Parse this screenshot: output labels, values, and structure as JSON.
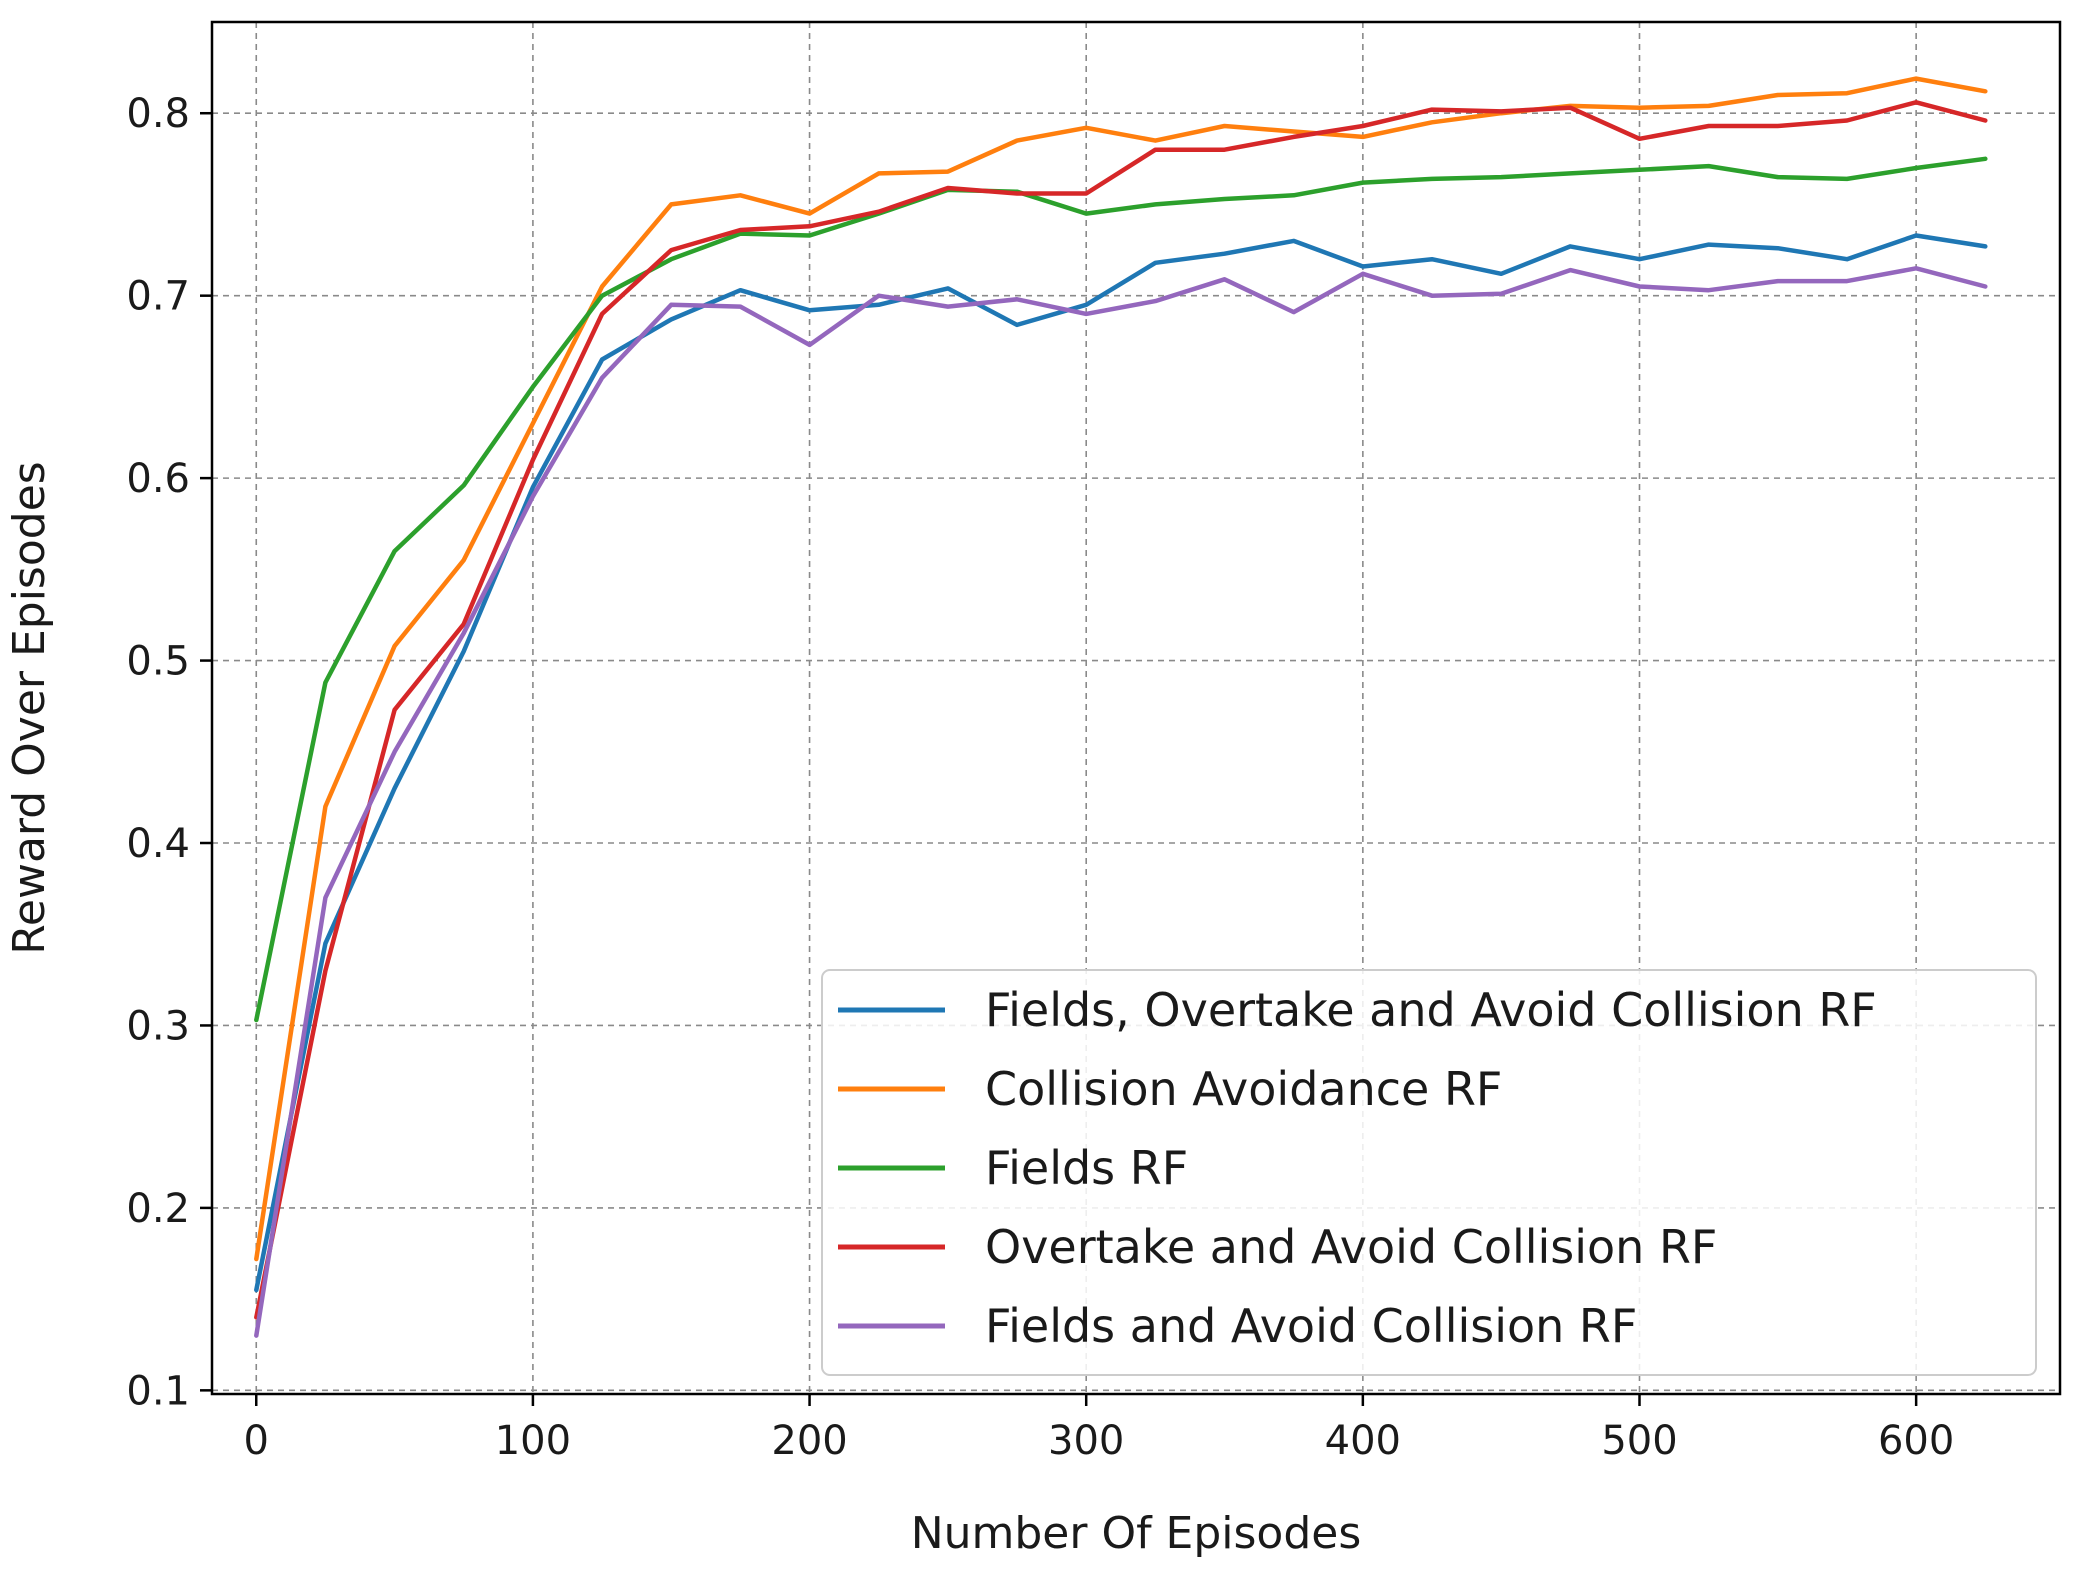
{
  "chart_data": {
    "type": "line",
    "title": "",
    "xlabel": "Number Of Episodes",
    "ylabel": "Reward Over Episodes",
    "xlim": [
      -16,
      652
    ],
    "ylim": [
      0.098,
      0.85
    ],
    "xticks": [
      0,
      100,
      200,
      300,
      400,
      500,
      600
    ],
    "xtick_labels": [
      "0",
      "100",
      "200",
      "300",
      "400",
      "500",
      "600"
    ],
    "yticks": [
      0.1,
      0.2,
      0.3,
      0.4,
      0.5,
      0.6,
      0.7,
      0.8
    ],
    "ytick_labels": [
      "0.1",
      "0.2",
      "0.3",
      "0.4",
      "0.5",
      "0.6",
      "0.7",
      "0.8"
    ],
    "grid": true,
    "legend_position": "lower-right",
    "x": [
      0,
      25,
      50,
      75,
      100,
      125,
      150,
      175,
      200,
      225,
      250,
      275,
      300,
      325,
      350,
      375,
      400,
      425,
      450,
      475,
      500,
      525,
      550,
      575,
      600,
      625
    ],
    "series": [
      {
        "name": "Fields, Overtake and Avoid Collision RF",
        "color": "#1f77b4",
        "values": [
          0.155,
          0.345,
          0.43,
          0.505,
          0.595,
          0.665,
          0.687,
          0.703,
          0.692,
          0.695,
          0.704,
          0.684,
          0.695,
          0.718,
          0.723,
          0.73,
          0.716,
          0.72,
          0.712,
          0.727,
          0.72,
          0.728,
          0.726,
          0.72,
          0.733,
          0.727
        ]
      },
      {
        "name": "Collision Avoidance RF",
        "color": "#ff7f0e",
        "values": [
          0.172,
          0.42,
          0.508,
          0.555,
          0.63,
          0.705,
          0.75,
          0.755,
          0.745,
          0.767,
          0.768,
          0.785,
          0.792,
          0.785,
          0.793,
          0.79,
          0.787,
          0.795,
          0.8,
          0.804,
          0.803,
          0.804,
          0.81,
          0.811,
          0.819,
          0.812
        ]
      },
      {
        "name": "Fields RF",
        "color": "#2ca02c",
        "values": [
          0.303,
          0.488,
          0.56,
          0.596,
          0.65,
          0.7,
          0.72,
          0.734,
          0.733,
          0.745,
          0.758,
          0.757,
          0.745,
          0.75,
          0.753,
          0.755,
          0.762,
          0.764,
          0.765,
          0.767,
          0.769,
          0.771,
          0.765,
          0.764,
          0.77,
          0.775
        ]
      },
      {
        "name": "Overtake and Avoid Collision RF",
        "color": "#d62728",
        "values": [
          0.14,
          0.33,
          0.473,
          0.52,
          0.61,
          0.69,
          0.725,
          0.736,
          0.738,
          0.746,
          0.759,
          0.756,
          0.756,
          0.78,
          0.78,
          0.787,
          0.793,
          0.802,
          0.801,
          0.803,
          0.786,
          0.793,
          0.793,
          0.796,
          0.806,
          0.796
        ]
      },
      {
        "name": "Fields and Avoid Collision RF",
        "color": "#9467bd",
        "values": [
          0.13,
          0.37,
          0.45,
          0.515,
          0.59,
          0.655,
          0.695,
          0.694,
          0.673,
          0.7,
          0.694,
          0.698,
          0.69,
          0.697,
          0.709,
          0.691,
          0.712,
          0.7,
          0.701,
          0.714,
          0.705,
          0.703,
          0.708,
          0.708,
          0.715,
          0.705
        ]
      }
    ]
  }
}
